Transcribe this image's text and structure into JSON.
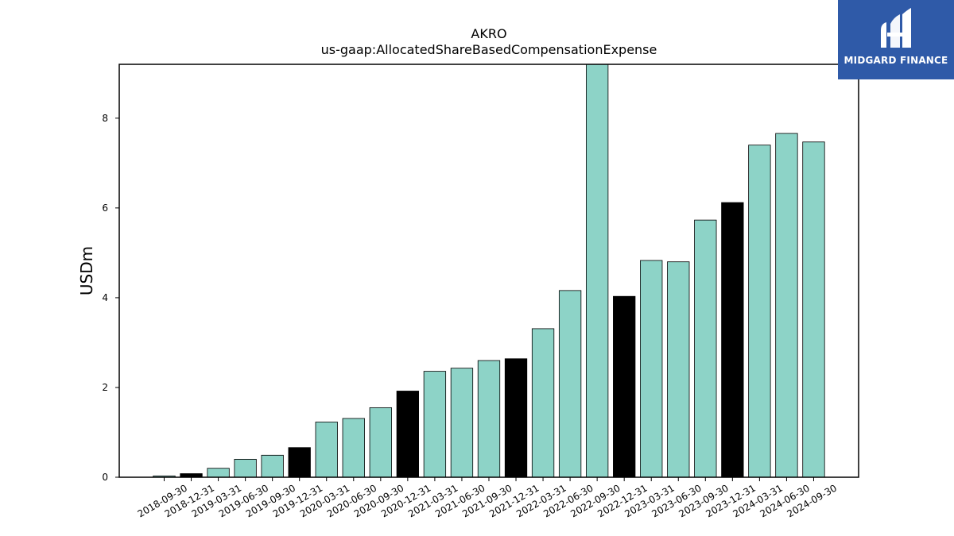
{
  "chart_data": {
    "type": "bar",
    "title": "AKRO",
    "subtitle": "us-gaap:AllocatedShareBasedCompensationExpense",
    "xlabel": "",
    "ylabel": "USDm",
    "ylim": [
      0,
      9.2
    ],
    "yticks": [
      0,
      2,
      4,
      6,
      8
    ],
    "grid": false,
    "categories": [
      "2018-09-30",
      "2018-12-31",
      "2019-03-31",
      "2019-06-30",
      "2019-09-30",
      "2019-12-31",
      "2020-03-31",
      "2020-06-30",
      "2020-09-30",
      "2020-12-31",
      "2021-03-31",
      "2021-06-30",
      "2021-09-30",
      "2021-12-31",
      "2022-03-31",
      "2022-06-30",
      "2022-09-30",
      "2022-12-31",
      "2023-03-31",
      "2023-06-30",
      "2023-09-30",
      "2023-12-31",
      "2024-03-31",
      "2024-06-30",
      "2024-09-30"
    ],
    "values": [
      0.03,
      0.08,
      0.2,
      0.4,
      0.49,
      0.66,
      1.23,
      1.31,
      1.55,
      1.92,
      2.36,
      2.43,
      2.6,
      2.64,
      3.31,
      4.16,
      9.2,
      4.03,
      4.83,
      4.8,
      5.73,
      6.12,
      7.4,
      7.66,
      7.47
    ],
    "highlight_categories": [
      "2018-12-31",
      "2019-12-31",
      "2020-12-31",
      "2021-12-31",
      "2022-12-31",
      "2023-12-31"
    ],
    "colors": {
      "bar": "#8dd3c7",
      "highlight": "#000000",
      "edge": "#000000"
    }
  },
  "logo": {
    "text": "MIDGARD FINANCE",
    "background": "#2f5aa8"
  }
}
